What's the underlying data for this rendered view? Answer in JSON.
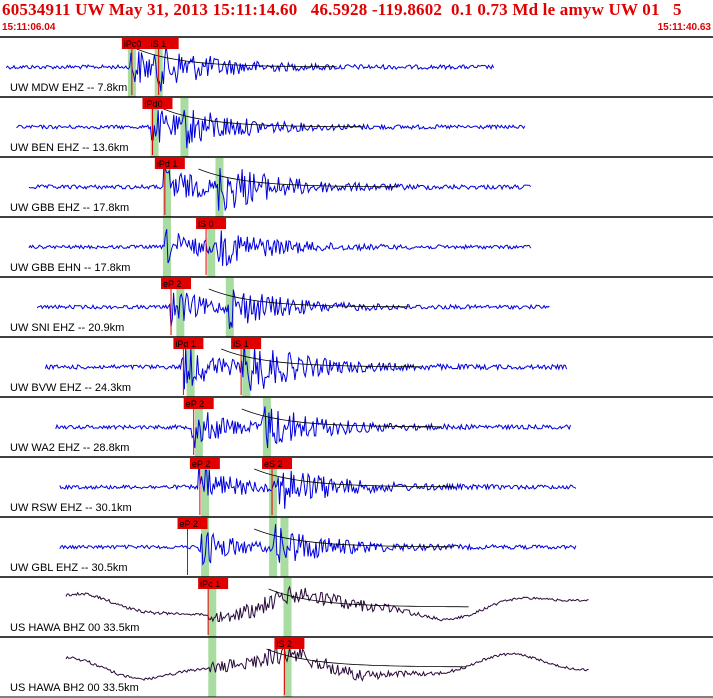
{
  "header": {
    "title": "60534911 UW May 31, 2013 15:11:14.60   46.5928 -119.8602  0.1 0.73 Md le amyw UW 01   5",
    "time_start": "15:11:06.04",
    "time_end": "15:11:40.63"
  },
  "colors": {
    "waveform": "#0000dd",
    "waveform_broadband": "#2a0a3a",
    "pick": "#e00000",
    "window": "#a8dca0",
    "separator": "#000000"
  },
  "traces": [
    {
      "label": "UW MDW EHZ -- 7.8km",
      "picks": [
        {
          "text": "iPc0",
          "t": 6.3
        },
        {
          "text": "iS 1",
          "t": 7.6
        }
      ],
      "wave": [
        0.3,
        24.0
      ],
      "onset": 6.3,
      "onset2": 7.6,
      "amp": 0.9,
      "windows": [
        6.35,
        7.65
      ]
    },
    {
      "label": "UW BEN EHZ -- 13.6km",
      "picks": [
        {
          "text": "iPd0",
          "t": 7.3
        }
      ],
      "wave": [
        0.8,
        25.5
      ],
      "onset": 7.3,
      "onset2": 8.9,
      "amp": 0.85,
      "windows": [
        7.45,
        8.9
      ]
    },
    {
      "label": "UW GBB EHZ -- 17.8km",
      "picks": [
        {
          "text": "iPd 1",
          "t": 7.9
        }
      ],
      "wave": [
        1.4,
        25.8
      ],
      "onset": 7.9,
      "onset2": 10.6,
      "amp": 0.95,
      "windows": [
        8.05,
        10.6
      ]
    },
    {
      "label": "UW GBB EHN -- 17.8km",
      "picks": [
        {
          "text": "iS 0",
          "t": 9.9
        }
      ],
      "wave": [
        1.4,
        25.8
      ],
      "onset": 7.9,
      "onset2": 10.6,
      "amp": 0.8,
      "windows": [
        8.05,
        10.2
      ]
    },
    {
      "label": "UW SNI EHZ -- 20.9km",
      "picks": [
        {
          "text": "eP 2",
          "t": 8.2
        }
      ],
      "wave": [
        1.8,
        26.7
      ],
      "onset": 8.2,
      "onset2": 11.1,
      "amp": 0.85,
      "windows": [
        8.7,
        11.1
      ]
    },
    {
      "label": "UW BVW EHZ -- 24.3km",
      "picks": [
        {
          "text": "iPd 1",
          "t": 8.8
        },
        {
          "text": "iS 1",
          "t": 11.6
        }
      ],
      "wave": [
        2.2,
        27.5
      ],
      "onset": 8.8,
      "onset2": 11.7,
      "amp": 1.0,
      "windows": [
        9.2,
        11.9
      ]
    },
    {
      "label": "UW WA2 EHZ -- 28.8km",
      "picks": [
        {
          "text": "eP 2",
          "t": 9.3
        }
      ],
      "wave": [
        2.7,
        27.7
      ],
      "onset": 9.3,
      "onset2": 12.7,
      "amp": 0.9,
      "windows": [
        9.6,
        12.9
      ]
    },
    {
      "label": "UW RSW EHZ -- 30.1km",
      "picks": [
        {
          "text": "eP 2",
          "t": 9.6
        },
        {
          "text": "eS 2",
          "t": 13.1
        }
      ],
      "wave": [
        2.9,
        28.0
      ],
      "onset": 9.6,
      "onset2": 13.3,
      "amp": 0.9,
      "windows": [
        9.9,
        13.2
      ]
    },
    {
      "label": "UW GBL EHZ -- 30.5km",
      "picks": [
        {
          "text": "eP 2",
          "t": 9.0
        }
      ],
      "wave": [
        2.9,
        28.0
      ],
      "onset": 9.6,
      "onset2": 13.3,
      "amp": 0.85,
      "windows": [
        9.9,
        13.2,
        13.75
      ]
    },
    {
      "label": "US HAWA BHZ 00 33.5km",
      "picks": [
        {
          "text": "iPc 1",
          "t": 10.0
        }
      ],
      "wave": [
        3.2,
        28.6
      ],
      "onset": 10.1,
      "onset2": 14.0,
      "amp": 0.8,
      "windows": [
        10.25,
        13.9
      ],
      "broadband": true
    },
    {
      "label": "US HAWA BH2 00 33.5km",
      "picks": [
        {
          "text": "iS 2",
          "t": 13.7
        }
      ],
      "wave": [
        3.2,
        28.6
      ],
      "onset": 10.1,
      "onset2": 13.9,
      "amp": 0.8,
      "windows": [
        10.25,
        13.9
      ],
      "broadband": true
    }
  ]
}
